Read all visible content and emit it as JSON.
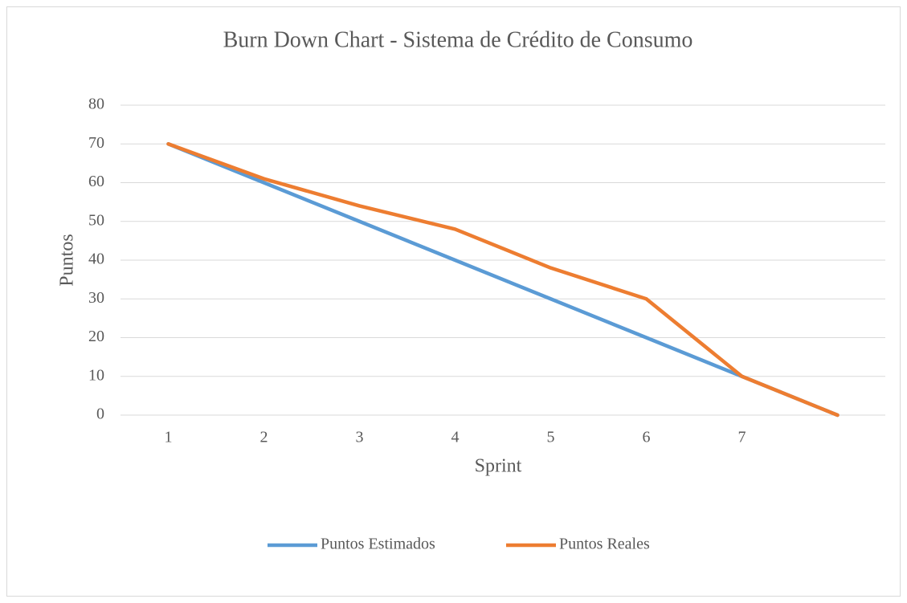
{
  "chart_data": {
    "type": "line",
    "title": "Burn Down Chart - Sistema de Crédito de Consumo",
    "x_label": "Sprint",
    "y_label": "Puntos",
    "categories": [
      "1",
      "2",
      "3",
      "4",
      "5",
      "6",
      "7",
      null
    ],
    "series": [
      {
        "name": "Puntos Estimados",
        "color": "#5b9bd5",
        "values": [
          70,
          60,
          50,
          40,
          30,
          20,
          10,
          0
        ]
      },
      {
        "name": "Puntos Reales",
        "color": "#ed7d31",
        "values": [
          70,
          61,
          54,
          48,
          38,
          30,
          10,
          0
        ]
      }
    ],
    "ylim": [
      0,
      80
    ],
    "yticks": [
      0,
      10,
      20,
      30,
      40,
      50,
      60,
      70,
      80
    ],
    "grid": true,
    "legend": "bottom"
  }
}
